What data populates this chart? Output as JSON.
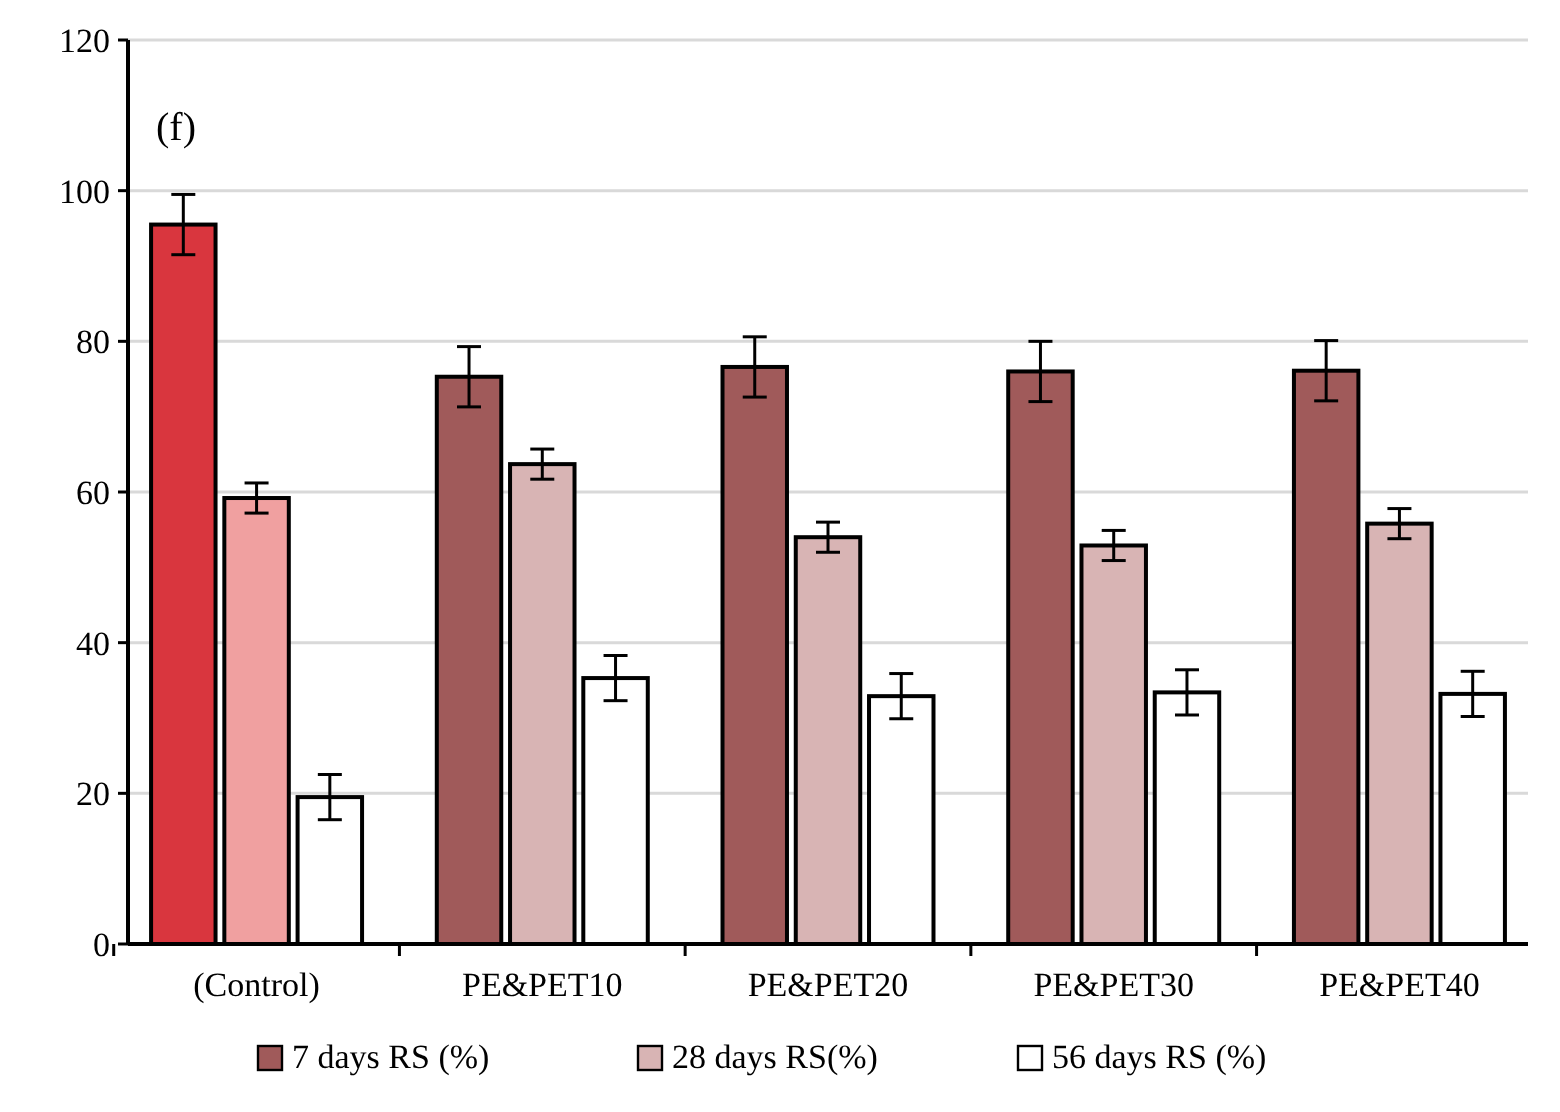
{
  "chart_data": {
    "type": "bar",
    "categories": [
      "(Control)",
      "PE&PET10",
      "PE&PET20",
      "PE&PET30",
      "PE&PET40"
    ],
    "series": [
      {
        "name": "7 days RS (%)",
        "color": "#a05a5a",
        "colors": [
          "#d9363e",
          "#a05a5a",
          "#a05a5a",
          "#a05a5a",
          "#a05a5a"
        ],
        "values": [
          95.5,
          75.3,
          76.6,
          76,
          76.1
        ],
        "errors": [
          4,
          4,
          4,
          4,
          4
        ]
      },
      {
        "name": "28 days RS(%)",
        "color": "#d8b4b4",
        "colors": [
          "#f0a0a0",
          "#d8b4b4",
          "#d8b4b4",
          "#d8b4b4",
          "#d8b4b4"
        ],
        "values": [
          59.2,
          63.7,
          54,
          52.9,
          55.8
        ],
        "errors": [
          2,
          2,
          2,
          2,
          2
        ]
      },
      {
        "name": "56 days RS (%)",
        "color": "#ffffff",
        "colors": [
          "#ffffff",
          "#ffffff",
          "#ffffff",
          "#ffffff",
          "#ffffff"
        ],
        "values": [
          19.5,
          35.3,
          32.9,
          33.4,
          33.2
        ],
        "errors": [
          3,
          3,
          3,
          3,
          3
        ]
      }
    ],
    "ylim": [
      0,
      120
    ],
    "yticks": [
      0,
      20,
      40,
      60,
      80,
      100,
      120
    ],
    "grid": "y",
    "legend": "bottom",
    "annotations": [
      "(f)"
    ]
  }
}
